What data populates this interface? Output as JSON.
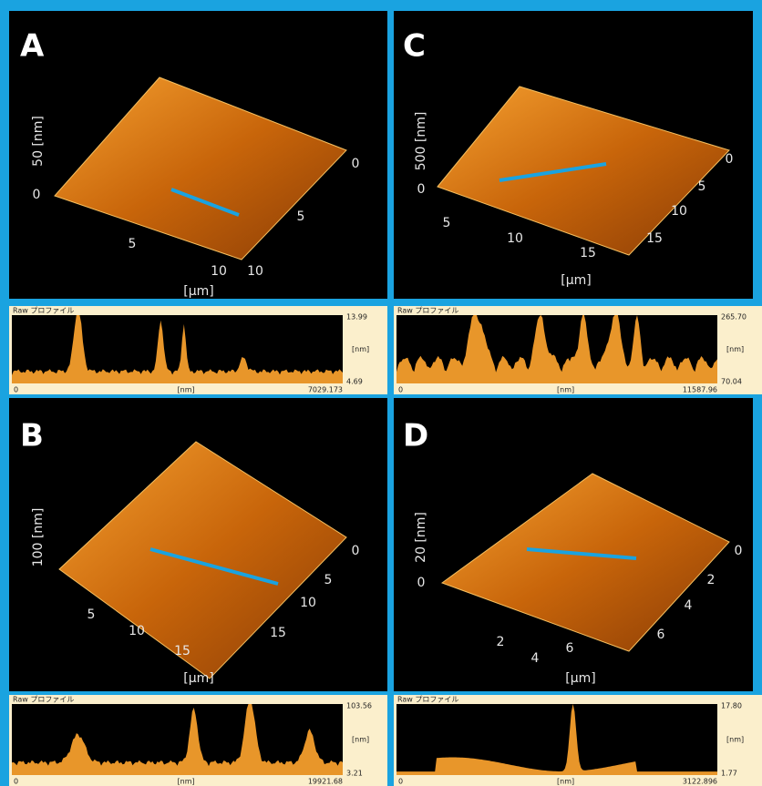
{
  "panels": [
    {
      "label": "A",
      "z_label": "50 [nm]",
      "z_zero": "0",
      "x_ticks": [
        "5",
        "10"
      ],
      "x_unit": "[μm]",
      "y_ticks": [
        "0",
        "5",
        "10"
      ],
      "profile": {
        "title": "Raw プロファイル",
        "max": "13.99",
        "unit": "[nm]",
        "min": "4.69",
        "start": "0",
        "x_unit": "[nm]",
        "end": "7029.173"
      }
    },
    {
      "label": "C",
      "z_label": "500 [nm]",
      "z_zero": "0",
      "x_ticks": [
        "5",
        "10",
        "15"
      ],
      "x_unit": "[μm]",
      "y_ticks": [
        "0",
        "5",
        "10",
        "15"
      ],
      "profile": {
        "title": "Raw プロファイル",
        "max": "265.70",
        "unit": "[nm]",
        "min": "70.04",
        "start": "0",
        "x_unit": "[nm]",
        "end": "11587.96"
      }
    },
    {
      "label": "B",
      "z_label": "100 [nm]",
      "x_ticks": [
        "5",
        "10",
        "15"
      ],
      "x_unit": "[μm]",
      "y_ticks": [
        "0",
        "5",
        "10",
        "15"
      ],
      "profile": {
        "title": "Raw プロファイル",
        "max": "103.56",
        "unit": "[nm]",
        "min": "3.21",
        "start": "0",
        "x_unit": "[nm]",
        "end": "19921.68"
      }
    },
    {
      "label": "D",
      "z_label": "20 [nm]",
      "z_zero": "0",
      "x_ticks": [
        "2",
        "4",
        "6"
      ],
      "x_unit": "[μm]",
      "y_ticks": [
        "0",
        "2",
        "4",
        "6"
      ],
      "profile": {
        "title": "Raw プロファイル",
        "max": "17.80",
        "unit": "[nm]",
        "min": "1.77",
        "start": "0",
        "x_unit": "[nm]",
        "end": "3122.896"
      }
    }
  ]
}
